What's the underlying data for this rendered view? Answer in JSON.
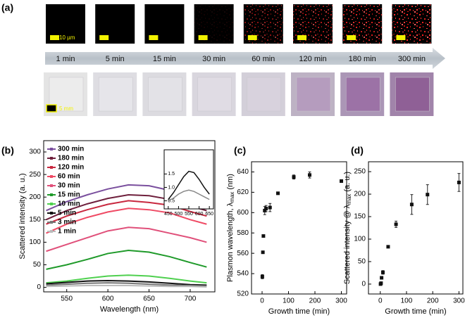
{
  "panel_a": {
    "label": "(a)",
    "scale_bar_top": "10 µm",
    "scale_bar_bottom": "5 mm",
    "times": [
      "1 min",
      "5 min",
      "15 min",
      "30 min",
      "60 min",
      "120 min",
      "180 min",
      "300 min"
    ]
  },
  "chart_data": [
    {
      "type": "line",
      "panel_label": "(b)",
      "xlabel": "Wavelength (nm)",
      "ylabel": "Scattered intensity (a. u.)",
      "x": [
        525,
        550,
        575,
        600,
        625,
        650,
        675,
        700,
        720
      ],
      "series": [
        {
          "name": "300 min",
          "color": "#7a4f9e",
          "values": [
            170,
            190,
            205,
            218,
            227,
            225,
            215,
            200,
            188
          ]
        },
        {
          "name": "180 min",
          "color": "#6e1f3c",
          "values": [
            150,
            170,
            185,
            197,
            205,
            203,
            195,
            180,
            170
          ]
        },
        {
          "name": "120 min",
          "color": "#c8283f",
          "values": [
            140,
            158,
            172,
            184,
            192,
            188,
            182,
            168,
            158
          ]
        },
        {
          "name": "60 min",
          "color": "#ef4a64",
          "values": [
            120,
            140,
            155,
            167,
            175,
            172,
            165,
            150,
            140
          ]
        },
        {
          "name": "30 min",
          "color": "#e0507a",
          "values": [
            80,
            95,
            110,
            125,
            133,
            130,
            120,
            110,
            100
          ]
        },
        {
          "name": "15 min",
          "color": "#1f9a2a",
          "values": [
            40,
            50,
            62,
            75,
            82,
            78,
            68,
            55,
            45
          ]
        },
        {
          "name": "10 min",
          "color": "#4fd04f",
          "values": [
            10,
            14,
            20,
            25,
            27,
            25,
            20,
            14,
            10
          ]
        },
        {
          "name": "5 min",
          "color": "#111111",
          "values": [
            8,
            11,
            14,
            15,
            14,
            12,
            9,
            6,
            5
          ]
        },
        {
          "name": "3 min",
          "color": "#777777",
          "values": [
            5,
            7,
            9,
            10,
            9,
            7,
            5,
            4,
            3
          ]
        },
        {
          "name": "1 min",
          "color": "#bbbbbb",
          "values": [
            2,
            3,
            4,
            4,
            4,
            3,
            2,
            2,
            1
          ]
        }
      ],
      "xlim": [
        522,
        730
      ],
      "ylim": [
        -10,
        325
      ],
      "xticks": [
        550,
        600,
        650,
        700
      ],
      "yticks": [
        0,
        50,
        100,
        150,
        200,
        250,
        300
      ],
      "legend": "upper left"
    },
    {
      "type": "line",
      "x": [
        450,
        475,
        500,
        525,
        550,
        575,
        600,
        625,
        650
      ],
      "series": [
        {
          "color": "#111111",
          "values": [
            0.55,
            0.8,
            1.1,
            1.4,
            1.6,
            1.55,
            1.3,
            1.0,
            0.75
          ]
        },
        {
          "color": "#888888",
          "values": [
            0.5,
            0.6,
            0.75,
            0.85,
            0.9,
            0.85,
            0.75,
            0.65,
            0.55
          ]
        }
      ],
      "xlim": [
        430,
        670
      ],
      "ylim": [
        0.2,
        2.4
      ],
      "xticks": [
        450,
        500,
        550,
        600,
        650
      ],
      "yticks": [
        0.5,
        {
          "value": 1,
          "label": "1.0"
        },
        1.5
      ]
    },
    {
      "type": "scatter",
      "panel_label": "(c)",
      "xlabel": "Growth time (min)",
      "ylabel": {
        "text": "Plasmon wavelength, λ",
        "subscript": "max",
        "tail": " (nm)"
      },
      "x": [
        1,
        3,
        5,
        10,
        15,
        30,
        60,
        120,
        180,
        300
      ],
      "values": [
        537,
        561,
        577,
        602,
        604,
        605,
        619,
        635,
        637,
        631
      ],
      "errors": [
        2,
        1,
        1,
        4,
        3,
        4,
        1,
        2,
        3,
        1
      ],
      "color": "#111111",
      "xlim": [
        -40,
        320
      ],
      "ylim": [
        520,
        650
      ],
      "xticks": [
        0,
        100,
        200,
        300
      ],
      "yticks": [
        520,
        540,
        560,
        580,
        600,
        620,
        640
      ]
    },
    {
      "type": "scatter",
      "panel_label": "(d)",
      "xlabel": "Growth time (min)",
      "ylabel": {
        "text": "Scattered intensity @ λ",
        "subscript": "max",
        "tail": " (a. u.)"
      },
      "x": [
        1,
        3,
        5,
        10,
        30,
        60,
        120,
        180,
        300
      ],
      "values": [
        0,
        2,
        14,
        26,
        83,
        133,
        177,
        199,
        226
      ],
      "errors": [
        2,
        2,
        3,
        4,
        2,
        7,
        22,
        22,
        20
      ],
      "color": "#111111",
      "xlim": [
        -45,
        315
      ],
      "ylim": [
        -22,
        272
      ],
      "xticks": [
        0,
        100,
        200,
        300
      ],
      "yticks": [
        0,
        50,
        100,
        150,
        200,
        250
      ]
    }
  ]
}
